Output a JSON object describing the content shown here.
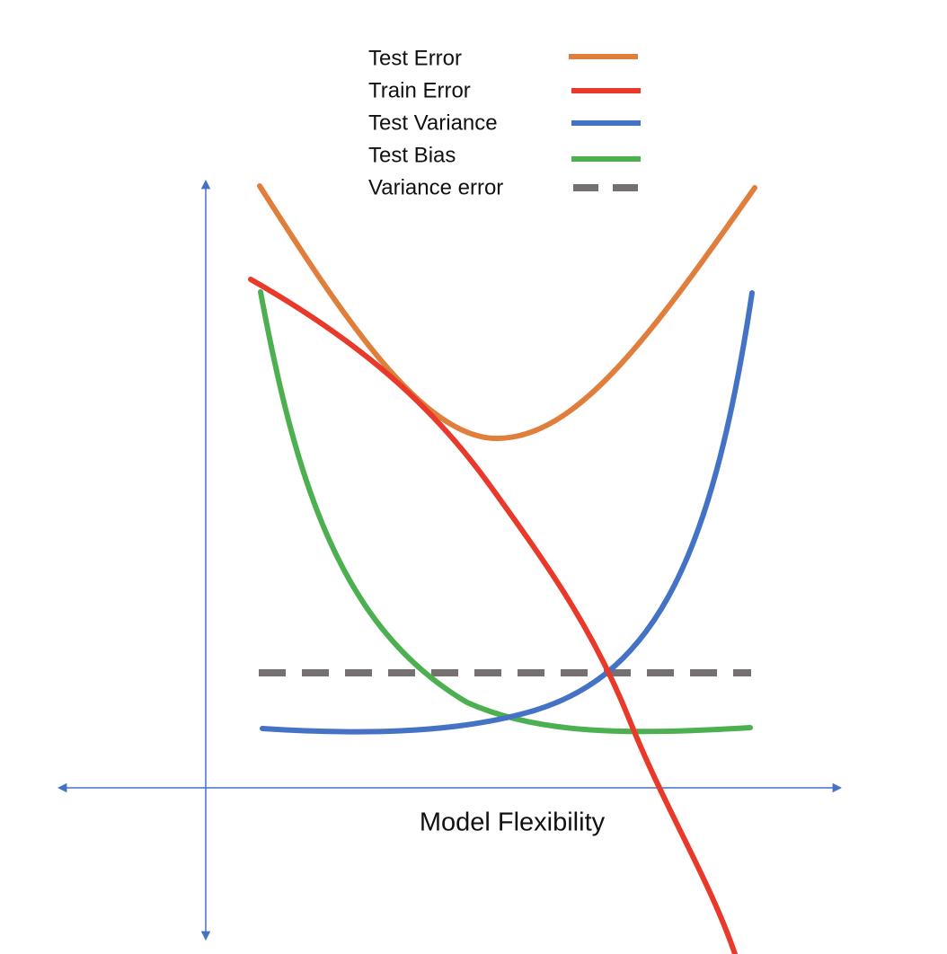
{
  "legend": [
    "Test Error",
    "Train Error",
    "Test Variance",
    "Test Bias",
    "Variance error"
  ],
  "x_axis_label": "Model Flexibility"
}
